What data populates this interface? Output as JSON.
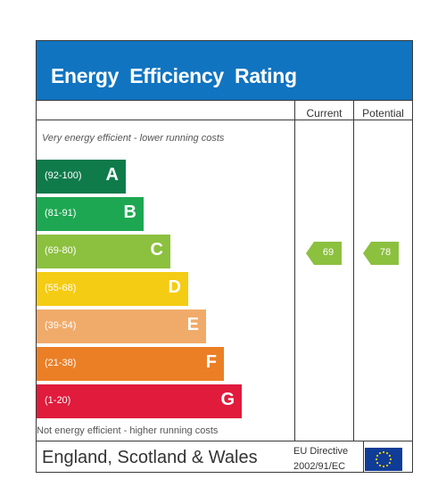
{
  "title": "Energy Efficiency Rating",
  "columns": {
    "current": "Current",
    "potential": "Potential"
  },
  "notes": {
    "top": "Very energy efficient - lower running costs",
    "bottom": "Not energy efficient - higher running costs"
  },
  "bands": [
    {
      "range": "(92-100)",
      "letter": "A",
      "color": "#0f7b4b"
    },
    {
      "range": "(81-91)",
      "letter": "B",
      "color": "#1ea752"
    },
    {
      "range": "(69-80)",
      "letter": "C",
      "color": "#8cc03f"
    },
    {
      "range": "(55-68)",
      "letter": "D",
      "color": "#f5cc14"
    },
    {
      "range": "(39-54)",
      "letter": "E",
      "color": "#f0ab6a"
    },
    {
      "range": "(21-38)",
      "letter": "F",
      "color": "#eb7f26"
    },
    {
      "range": "(1-20)",
      "letter": "G",
      "color": "#e01b3c"
    }
  ],
  "current": {
    "value": "69",
    "band": "C",
    "color": "#8cc03f"
  },
  "potential": {
    "value": "78",
    "band": "C",
    "color": "#8cc03f"
  },
  "footer": {
    "region": "England, Scotland & Wales",
    "directive_line1": "EU Directive",
    "directive_line2": "2002/91/EC"
  },
  "flag_icon": "eu-flag-icon"
}
